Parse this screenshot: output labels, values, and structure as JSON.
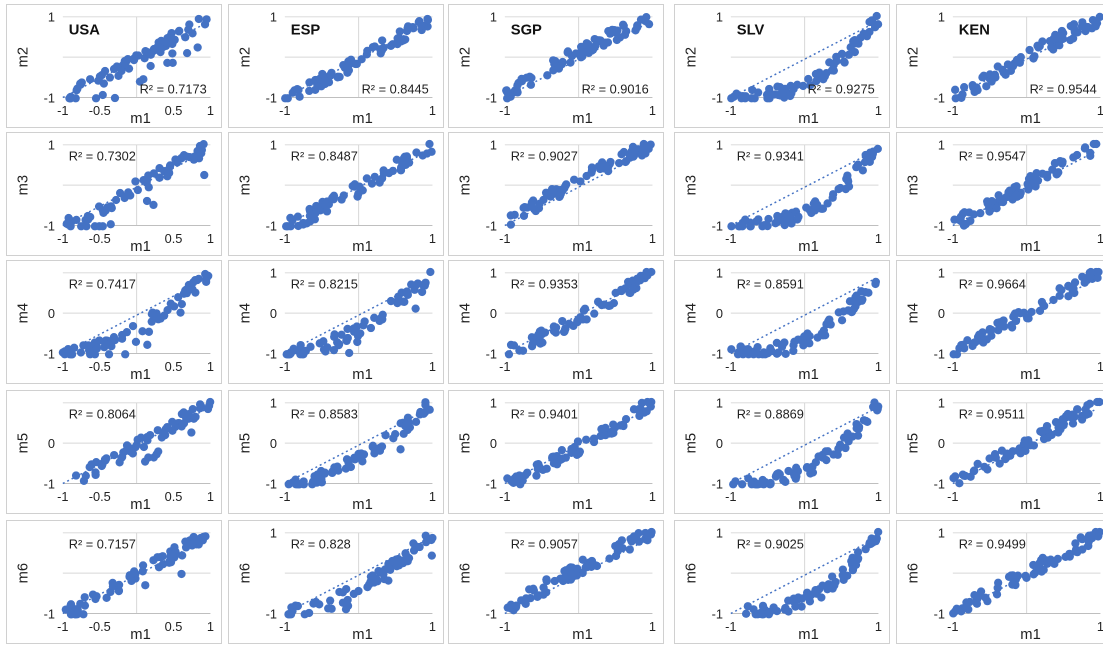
{
  "x_axis_label": "m1",
  "r2_prefix": "R² = ",
  "colors": {
    "point": "#4472C4",
    "grid": "#d6d6d6",
    "axis": "#bfbfbf",
    "text": "#222222",
    "trend": "#4472C4"
  },
  "chart_data": [
    {
      "type": "scatter",
      "row": 0,
      "col": 0,
      "title": "USA",
      "xlabel": "m1",
      "ylabel": "m2",
      "r2": "0.7173",
      "xticks": [
        "-1",
        "-0.5",
        "0.5",
        "1"
      ],
      "yticks": [
        "1",
        "-1"
      ],
      "xlim": [
        -1,
        1
      ],
      "ylim": [
        -1,
        1
      ],
      "shape": "usa",
      "seed": 11
    },
    {
      "type": "scatter",
      "row": 0,
      "col": 1,
      "title": "ESP",
      "xlabel": "m1",
      "ylabel": "m2",
      "r2": "0.8445",
      "xticks": [
        "-1",
        "1"
      ],
      "yticks": [
        "1",
        "-1"
      ],
      "xlim": [
        -1,
        1
      ],
      "ylim": [
        -1,
        1
      ],
      "shape": "lin",
      "seed": 12
    },
    {
      "type": "scatter",
      "row": 0,
      "col": 2,
      "title": "SGP",
      "xlabel": "m1",
      "ylabel": "m2",
      "r2": "0.9016",
      "xticks": [
        "-1",
        "1"
      ],
      "yticks": [
        "1",
        "-1"
      ],
      "xlim": [
        -1,
        1
      ],
      "ylim": [
        -1,
        1
      ],
      "shape": "sgp",
      "seed": 13
    },
    {
      "type": "scatter",
      "row": 0,
      "col": 3,
      "title": "SLV",
      "xlabel": "m1",
      "ylabel": "m2",
      "r2": "0.9275",
      "xticks": [
        "-1",
        "1"
      ],
      "yticks": [
        "1",
        "-1"
      ],
      "xlim": [
        -1,
        1
      ],
      "ylim": [
        -1,
        1
      ],
      "shape": "slv",
      "seed": 14
    },
    {
      "type": "scatter",
      "row": 0,
      "col": 4,
      "title": "KEN",
      "xlabel": "m1",
      "ylabel": "m2",
      "r2": "0.9544",
      "xticks": [
        "-1",
        "1"
      ],
      "yticks": [
        "1",
        "-1"
      ],
      "xlim": [
        -1,
        1
      ],
      "ylim": [
        -1,
        1
      ],
      "shape": "ken",
      "seed": 15
    },
    {
      "type": "scatter",
      "row": 1,
      "col": 0,
      "xlabel": "m1",
      "ylabel": "m3",
      "r2": "0.7302",
      "xticks": [
        "-1",
        "-0.5",
        "0.5",
        "1"
      ],
      "yticks": [
        "1",
        "-1"
      ],
      "xlim": [
        -1,
        1
      ],
      "ylim": [
        -1,
        1
      ],
      "shape": "usa",
      "seed": 21
    },
    {
      "type": "scatter",
      "row": 1,
      "col": 1,
      "xlabel": "m1",
      "ylabel": "m3",
      "r2": "0.8487",
      "xticks": [
        "-1",
        "1"
      ],
      "yticks": [
        "1",
        "-1"
      ],
      "xlim": [
        -1,
        1
      ],
      "ylim": [
        -1,
        1
      ],
      "shape": "lin",
      "seed": 22
    },
    {
      "type": "scatter",
      "row": 1,
      "col": 2,
      "xlabel": "m1",
      "ylabel": "m3",
      "r2": "0.9027",
      "xticks": [
        "-1",
        "1"
      ],
      "yticks": [
        "1",
        "-1"
      ],
      "xlim": [
        -1,
        1
      ],
      "ylim": [
        -1,
        1
      ],
      "shape": "sgp",
      "seed": 23
    },
    {
      "type": "scatter",
      "row": 1,
      "col": 3,
      "xlabel": "m1",
      "ylabel": "m3",
      "r2": "0.9341",
      "xticks": [
        "-1",
        "1"
      ],
      "yticks": [
        "1",
        "-1"
      ],
      "xlim": [
        -1,
        1
      ],
      "ylim": [
        -1,
        1
      ],
      "shape": "slv",
      "seed": 24
    },
    {
      "type": "scatter",
      "row": 1,
      "col": 4,
      "xlabel": "m1",
      "ylabel": "m3",
      "r2": "0.9547",
      "xticks": [
        "-1",
        "1"
      ],
      "yticks": [
        "1",
        "-1"
      ],
      "xlim": [
        -1,
        1
      ],
      "ylim": [
        -1,
        1
      ],
      "shape": "ken",
      "seed": 25
    },
    {
      "type": "scatter",
      "row": 2,
      "col": 0,
      "xlabel": "m1",
      "ylabel": "m4",
      "r2": "0.7417",
      "xticks": [
        "-1",
        "-0.5",
        "0.5",
        "1"
      ],
      "yticks": [
        "0",
        "-1"
      ],
      "xlim": [
        -1,
        1
      ],
      "ylim": [
        -1,
        1
      ],
      "shape": "convex",
      "seed": 31
    },
    {
      "type": "scatter",
      "row": 2,
      "col": 1,
      "xlabel": "m1",
      "ylabel": "m4",
      "r2": "0.8215",
      "xticks": [
        "-1",
        "1"
      ],
      "yticks": [
        "1",
        "0",
        "-1"
      ],
      "xlim": [
        -1,
        1
      ],
      "ylim": [
        -1,
        1
      ],
      "shape": "convex",
      "seed": 32
    },
    {
      "type": "scatter",
      "row": 2,
      "col": 2,
      "xlabel": "m1",
      "ylabel": "m4",
      "r2": "0.9353",
      "xticks": [
        "-1",
        "1"
      ],
      "yticks": [
        "1",
        "0",
        "-1"
      ],
      "xlim": [
        -1,
        1
      ],
      "ylim": [
        -1,
        1
      ],
      "shape": "lin",
      "seed": 33
    },
    {
      "type": "scatter",
      "row": 2,
      "col": 3,
      "xlabel": "m1",
      "ylabel": "m4",
      "r2": "0.8591",
      "xticks": [
        "-1",
        "1"
      ],
      "yticks": [
        "1",
        "0",
        "-1"
      ],
      "xlim": [
        -1,
        1
      ],
      "ylim": [
        -1,
        1
      ],
      "shape": "slv",
      "seed": 34
    },
    {
      "type": "scatter",
      "row": 2,
      "col": 4,
      "xlabel": "m1",
      "ylabel": "m4",
      "r2": "0.9664",
      "xticks": [
        "-1",
        "1"
      ],
      "yticks": [
        "1",
        "0",
        "-1"
      ],
      "xlim": [
        -1,
        1
      ],
      "ylim": [
        -1,
        1
      ],
      "shape": "ken",
      "seed": 35
    },
    {
      "type": "scatter",
      "row": 3,
      "col": 0,
      "xlabel": "m1",
      "ylabel": "m5",
      "r2": "0.8064",
      "xticks": [
        "-1",
        "-0.5",
        "0.5",
        "1"
      ],
      "yticks": [
        "0",
        "-1"
      ],
      "xlim": [
        -1,
        1
      ],
      "ylim": [
        -1,
        1
      ],
      "shape": "usa",
      "seed": 41
    },
    {
      "type": "scatter",
      "row": 3,
      "col": 1,
      "xlabel": "m1",
      "ylabel": "m5",
      "r2": "0.8583",
      "xticks": [
        "-1",
        "1"
      ],
      "yticks": [
        "1",
        "0",
        "-1"
      ],
      "xlim": [
        -1,
        1
      ],
      "ylim": [
        -1,
        1
      ],
      "shape": "convex",
      "seed": 42
    },
    {
      "type": "scatter",
      "row": 3,
      "col": 2,
      "xlabel": "m1",
      "ylabel": "m5",
      "r2": "0.9401",
      "xticks": [
        "-1",
        "1"
      ],
      "yticks": [
        "1",
        "0",
        "-1"
      ],
      "xlim": [
        -1,
        1
      ],
      "ylim": [
        -1,
        1
      ],
      "shape": "lin",
      "seed": 43
    },
    {
      "type": "scatter",
      "row": 3,
      "col": 3,
      "xlabel": "m1",
      "ylabel": "m5",
      "r2": "0.8869",
      "xticks": [
        "-1",
        "1"
      ],
      "yticks": [
        "1",
        "0",
        "-1"
      ],
      "xlim": [
        -1,
        1
      ],
      "ylim": [
        -1,
        1
      ],
      "shape": "slv",
      "seed": 44
    },
    {
      "type": "scatter",
      "row": 3,
      "col": 4,
      "xlabel": "m1",
      "ylabel": "m5",
      "r2": "0.9511",
      "xticks": [
        "-1",
        "1"
      ],
      "yticks": [
        "1",
        "0",
        "-1"
      ],
      "xlim": [
        -1,
        1
      ],
      "ylim": [
        -1,
        1
      ],
      "shape": "ken",
      "seed": 45
    },
    {
      "type": "scatter",
      "row": 4,
      "col": 0,
      "xlabel": "m1",
      "ylabel": "m6",
      "r2": "0.7157",
      "xticks": [
        "-1",
        "-0.5",
        "0.5",
        "1"
      ],
      "yticks": [
        "-1"
      ],
      "xlim": [
        -1,
        1
      ],
      "ylim": [
        -1,
        1
      ],
      "shape": "usa",
      "seed": 51
    },
    {
      "type": "scatter",
      "row": 4,
      "col": 1,
      "xlabel": "m1",
      "ylabel": "m6",
      "r2": "0.828",
      "xticks": [
        "-1",
        "1"
      ],
      "yticks": [
        "1",
        "-1"
      ],
      "xlim": [
        -1,
        1
      ],
      "ylim": [
        -1,
        1
      ],
      "shape": "convex",
      "seed": 52
    },
    {
      "type": "scatter",
      "row": 4,
      "col": 2,
      "xlabel": "m1",
      "ylabel": "m6",
      "r2": "0.9057",
      "xticks": [
        "-1",
        "1"
      ],
      "yticks": [
        "-1"
      ],
      "xlim": [
        -1,
        1
      ],
      "ylim": [
        -1,
        1
      ],
      "shape": "sgp",
      "seed": 53
    },
    {
      "type": "scatter",
      "row": 4,
      "col": 3,
      "xlabel": "m1",
      "ylabel": "m6",
      "r2": "0.9025",
      "xticks": [
        "-1",
        "1"
      ],
      "yticks": [
        "1",
        "-1"
      ],
      "xlim": [
        -1,
        1
      ],
      "ylim": [
        -1,
        1
      ],
      "shape": "slv",
      "seed": 54
    },
    {
      "type": "scatter",
      "row": 4,
      "col": 4,
      "xlabel": "m1",
      "ylabel": "m6",
      "r2": "0.9499",
      "xticks": [
        "-1",
        "1"
      ],
      "yticks": [
        "1",
        "-1"
      ],
      "xlim": [
        -1,
        1
      ],
      "ylim": [
        -1,
        1
      ],
      "shape": "ken",
      "seed": 55
    }
  ]
}
